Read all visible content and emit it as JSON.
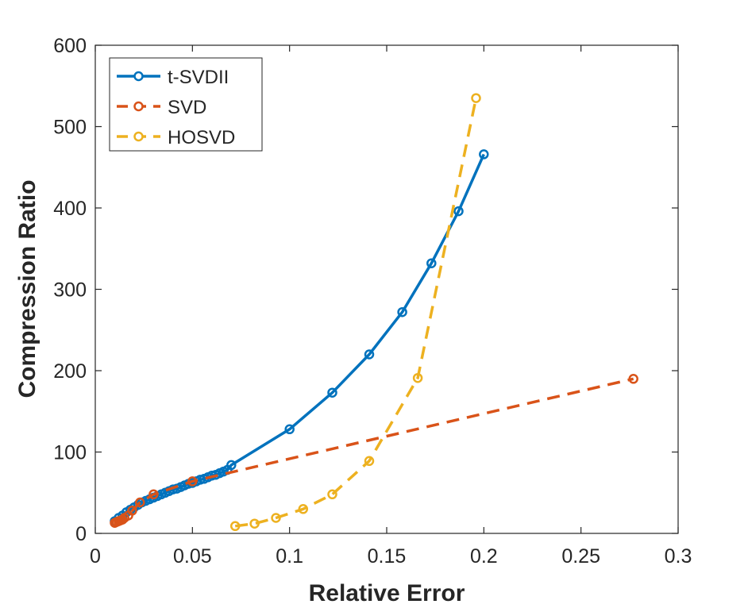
{
  "chart_data": {
    "type": "line",
    "title": "",
    "xlabel": "Relative Error",
    "ylabel": "Compression Ratio",
    "xlim": [
      0,
      0.3
    ],
    "ylim": [
      0,
      600
    ],
    "xticks": [
      0,
      0.05,
      0.1,
      0.15,
      0.2,
      0.25,
      0.3
    ],
    "xtick_labels": [
      "0",
      "0.05",
      "0.1",
      "0.15",
      "0.2",
      "0.25",
      "0.3"
    ],
    "yticks": [
      0,
      100,
      200,
      300,
      400,
      500,
      600
    ],
    "ytick_labels": [
      "0",
      "100",
      "200",
      "300",
      "400",
      "500",
      "600"
    ],
    "grid": false,
    "legend_position": "top-left",
    "series": [
      {
        "name": "t-SVDII",
        "color": "#0072BD",
        "line_style": "solid",
        "marker": "circle",
        "x": [
          0.01,
          0.012,
          0.014,
          0.016,
          0.018,
          0.02,
          0.022,
          0.024,
          0.026,
          0.028,
          0.03,
          0.032,
          0.034,
          0.036,
          0.038,
          0.04,
          0.042,
          0.044,
          0.046,
          0.048,
          0.05,
          0.052,
          0.054,
          0.056,
          0.058,
          0.06,
          0.062,
          0.064,
          0.066,
          0.068,
          0.07,
          0.1,
          0.122,
          0.141,
          0.158,
          0.173,
          0.187,
          0.2
        ],
        "y": [
          15,
          19,
          22,
          26,
          29,
          32,
          35,
          38,
          40,
          42,
          44,
          46,
          48,
          50,
          52,
          54,
          55,
          57,
          59,
          61,
          62,
          64,
          66,
          67,
          69,
          71,
          72,
          74,
          76,
          78,
          84,
          128,
          173,
          220,
          272,
          332,
          396,
          466
        ]
      },
      {
        "name": "SVD",
        "color": "#D95319",
        "line_style": "dashed",
        "marker": "circle",
        "x": [
          0.01,
          0.011,
          0.012,
          0.013,
          0.014,
          0.015,
          0.017,
          0.019,
          0.023,
          0.03,
          0.05,
          0.277
        ],
        "y": [
          13,
          14,
          15,
          16,
          17,
          19,
          22,
          28,
          38,
          48,
          64,
          190
        ]
      },
      {
        "name": "HOSVD",
        "color": "#EDB120",
        "line_style": "dashed",
        "marker": "circle",
        "x": [
          0.072,
          0.082,
          0.093,
          0.107,
          0.122,
          0.141,
          0.166,
          0.196
        ],
        "y": [
          9,
          12,
          19,
          30,
          48,
          89,
          191,
          535
        ]
      }
    ]
  }
}
